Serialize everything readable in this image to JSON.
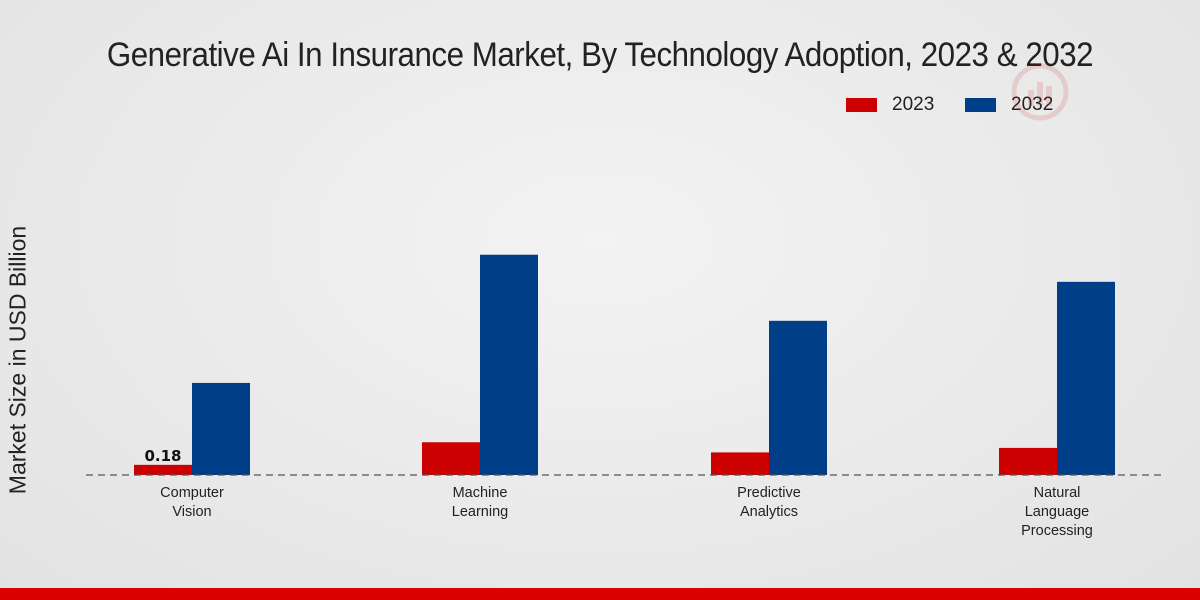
{
  "chart_data": {
    "type": "bar",
    "title": "Generative Ai In Insurance Market, By Technology Adoption, 2023 & 2032",
    "xlabel": "",
    "ylabel": "Market Size in USD Billion",
    "categories": [
      [
        "Computer",
        "Vision"
      ],
      [
        "Machine",
        "Learning"
      ],
      [
        "Predictive",
        "Analytics"
      ],
      [
        "Natural",
        "Language",
        "Processing"
      ]
    ],
    "series": [
      {
        "name": "2023",
        "color": "#cc0000",
        "values": [
          0.18,
          0.58,
          0.4,
          0.48
        ]
      },
      {
        "name": "2032",
        "color": "#003f87",
        "values": [
          1.63,
          3.9,
          2.73,
          3.42
        ]
      }
    ],
    "data_labels": [
      {
        "series": 0,
        "index": 0,
        "text": "0.18"
      }
    ],
    "ylim": [
      0,
      5.4
    ],
    "grid": false,
    "legend_position": "top-right"
  },
  "colors": {
    "footer": "#d90000",
    "baseline": "#555555"
  }
}
